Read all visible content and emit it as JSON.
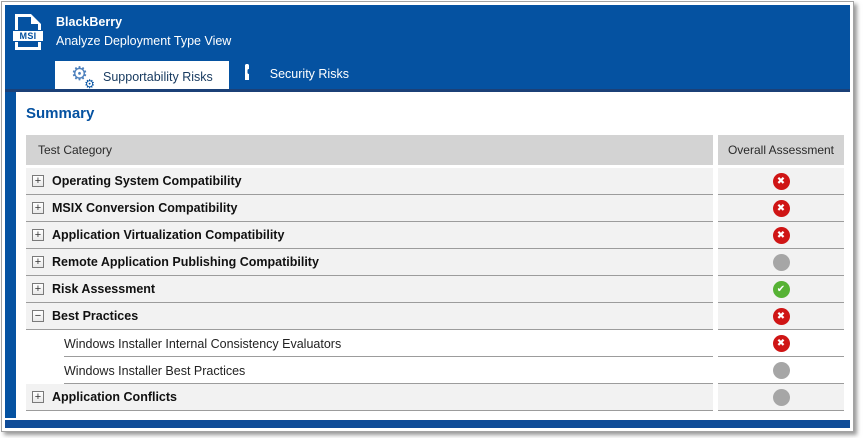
{
  "colors": {
    "accent_blue": "#0552A1",
    "band_underline": "#1B4077",
    "fail_red": "#CF1515",
    "pass_green": "#56B234",
    "na_gray": "#A6A6A6",
    "header_gray": "#D3D3D3"
  },
  "window": {
    "title": "BlackBerry",
    "subtitle": "Analyze Deployment Type View",
    "file_icon_label": "MSI"
  },
  "tabs": [
    {
      "label": "Supportability Risks",
      "icon": "gears-icon",
      "active": true
    },
    {
      "label": "Security Risks",
      "icon": "lock-icon",
      "active": false
    }
  ],
  "summary": {
    "heading": "Summary",
    "columns": {
      "category": "Test Category",
      "assessment": "Overall Assessment"
    },
    "rows": [
      {
        "label": "Operating System Compatibility",
        "level": 0,
        "expander": "collapsed",
        "status": "fail"
      },
      {
        "label": "MSIX Conversion Compatibility",
        "level": 0,
        "expander": "collapsed",
        "status": "fail"
      },
      {
        "label": "Application Virtualization Compatibility",
        "level": 0,
        "expander": "collapsed",
        "status": "fail"
      },
      {
        "label": "Remote Application Publishing Compatibility",
        "level": 0,
        "expander": "collapsed",
        "status": "none"
      },
      {
        "label": "Risk Assessment",
        "level": 0,
        "expander": "collapsed",
        "status": "pass"
      },
      {
        "label": "Best Practices",
        "level": 0,
        "expander": "expanded",
        "status": "fail"
      },
      {
        "label": "Windows Installer Internal Consistency Evaluators",
        "level": 1,
        "expander": null,
        "status": "fail"
      },
      {
        "label": "Windows Installer Best Practices",
        "level": 1,
        "expander": null,
        "status": "none"
      },
      {
        "label": "Application Conflicts",
        "level": 0,
        "expander": "collapsed",
        "status": "none"
      }
    ]
  }
}
